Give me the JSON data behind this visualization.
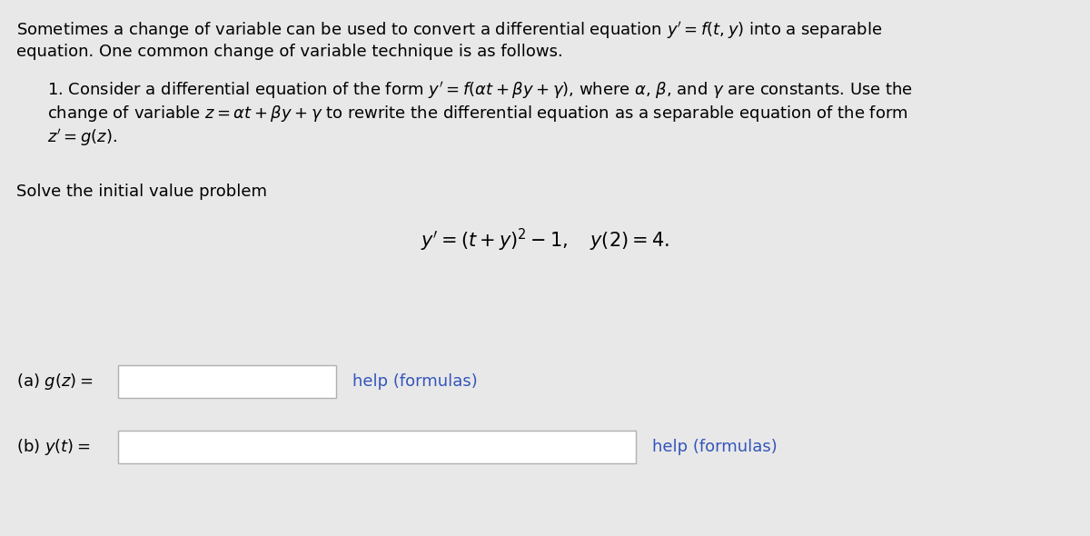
{
  "bg_color": "#e8e8e8",
  "white_box_color": "#ffffff",
  "border_color": "#b0b0b0",
  "text_color": "#000000",
  "link_color": "#3355bb",
  "font_size_body": 13.0,
  "para1_line1": "Sometimes a change of variable can be used to convert a differential equation $y' = f(t, y)$ into a separable",
  "para1_line2": "equation. One common change of variable technique is as follows.",
  "item1_line1": "1. Consider a differential equation of the form $y' = f(\\alpha t + \\beta y + \\gamma)$, where $\\alpha$, $\\beta$, and $\\gamma$ are constants. Use the",
  "item1_line2": "change of variable $z = \\alpha t + \\beta y + \\gamma$ to rewrite the differential equation as a separable equation of the form",
  "item1_line3": "$z' = g(z)$.",
  "solve_label": "Solve the initial value problem",
  "ivp_equation": "$y' = (t + y)^2 - 1, \\quad y(2) = 4.$",
  "part_a_label": "(a) $g(z) =$",
  "part_b_label": "(b) $y(t) =$",
  "help_text": "help (formulas)"
}
